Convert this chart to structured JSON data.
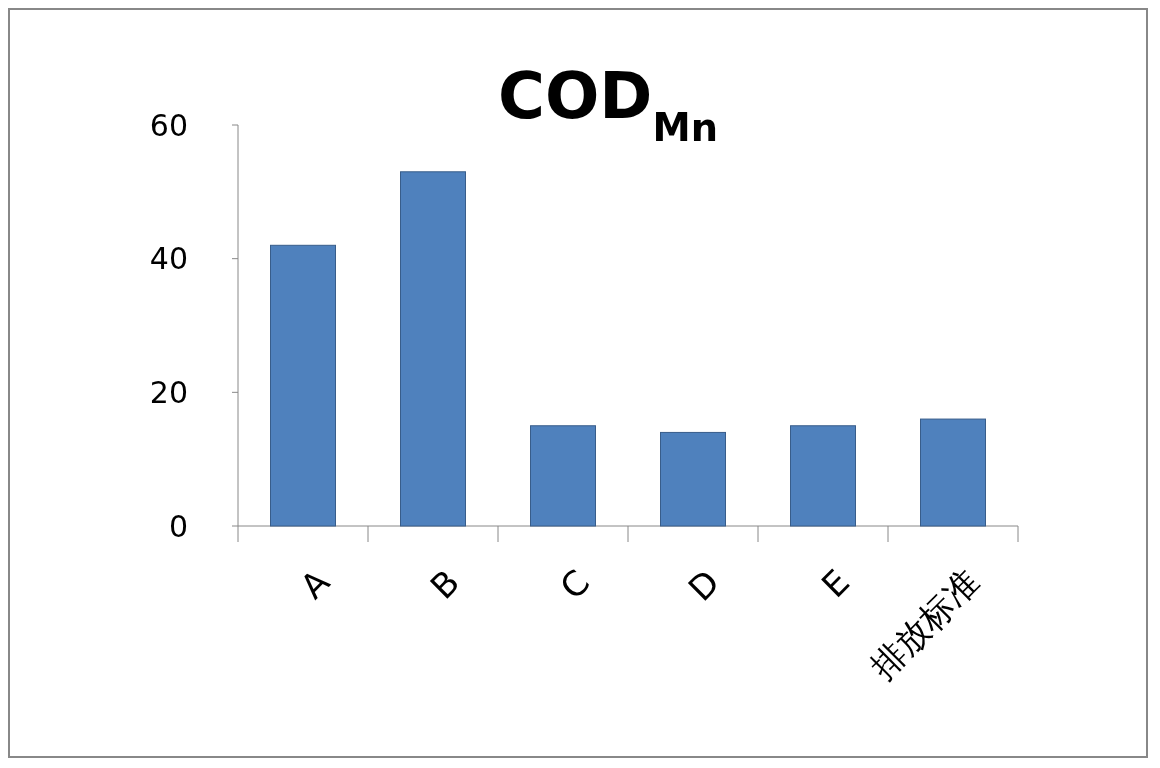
{
  "chart_data": {
    "type": "bar",
    "title": "COD$_{Mn}$",
    "categories": [
      "A",
      "B",
      "C",
      "D",
      "E",
      "排放标准"
    ],
    "values": [
      42,
      53,
      15,
      14,
      15,
      16
    ],
    "color": "#4f81bd",
    "ylim": [
      0,
      60
    ],
    "yticks": [
      0,
      20,
      40,
      60
    ],
    "grid": false
  }
}
